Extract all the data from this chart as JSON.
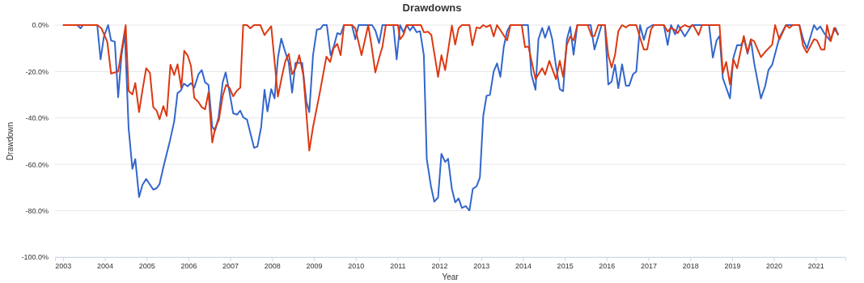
{
  "chart_data": {
    "type": "line",
    "title": "Drawdowns",
    "xlabel": "Year",
    "ylabel": "Drawdown",
    "xlim": [
      2002.81,
      2021.71
    ],
    "xticks": [
      2003,
      2004,
      2005,
      2006,
      2007,
      2008,
      2009,
      2010,
      2011,
      2012,
      2013,
      2014,
      2015,
      2016,
      2017,
      2018,
      2019,
      2020,
      2021
    ],
    "ylim": [
      -100,
      0
    ],
    "yticks": [
      {
        "value": -100,
        "label": "-100.0%"
      },
      {
        "value": -80,
        "label": "-80.0%"
      },
      {
        "value": -60,
        "label": "-60.0%"
      },
      {
        "value": -40,
        "label": "-40.0%"
      },
      {
        "value": -20,
        "label": "-20.0%"
      },
      {
        "value": 0,
        "label": "0.0%"
      }
    ],
    "grid": "y",
    "marker": "none",
    "line_style": "solid",
    "series": [
      {
        "color": "#3366cc",
        "x": [
          2003.0,
          2003.34,
          2003.42,
          2003.48,
          2003.82,
          2003.9,
          2003.98,
          2004.08,
          2004.15,
          2004.24,
          2004.32,
          2004.4,
          2004.48,
          2004.57,
          2004.66,
          2004.73,
          2004.82,
          2004.9,
          2004.99,
          2005.16,
          2005.24,
          2005.31,
          2005.4,
          2005.56,
          2005.66,
          2005.74,
          2005.82,
          2005.89,
          2005.98,
          2006.06,
          2006.14,
          2006.24,
          2006.32,
          2006.4,
          2006.48,
          2006.57,
          2006.64,
          2006.72,
          2006.82,
          2006.89,
          2006.98,
          2007.07,
          2007.16,
          2007.24,
          2007.31,
          2007.4,
          2007.57,
          2007.65,
          2007.74,
          2007.82,
          2007.89,
          2007.98,
          2008.06,
          2008.14,
          2008.22,
          2008.3,
          2008.4,
          2008.48,
          2008.56,
          2008.72,
          2008.82,
          2008.89,
          2008.98,
          2009.07,
          2009.16,
          2009.22,
          2009.31,
          2009.4,
          2009.48,
          2009.56,
          2009.64,
          2009.72,
          2009.91,
          2009.99,
          2010.07,
          2010.39,
          2010.47,
          2010.56,
          2010.64,
          2010.9,
          2010.98,
          2011.06,
          2011.14,
          2011.22,
          2011.3,
          2011.37,
          2011.46,
          2011.54,
          2011.63,
          2011.7,
          2011.8,
          2011.88,
          2011.97,
          2012.05,
          2012.14,
          2012.21,
          2012.3,
          2012.38,
          2012.46,
          2012.54,
          2012.63,
          2012.72,
          2012.8,
          2012.89,
          2012.97,
          2013.05,
          2013.13,
          2013.21,
          2013.3,
          2013.38,
          2013.46,
          2013.54,
          2013.62,
          2013.7,
          2014.12,
          2014.2,
          2014.3,
          2014.37,
          2014.46,
          2014.53,
          2014.62,
          2014.7,
          2014.79,
          2014.88,
          2014.96,
          2015.05,
          2015.13,
          2015.21,
          2015.3,
          2015.62,
          2015.71,
          2015.88,
          2015.96,
          2016.04,
          2016.12,
          2016.2,
          2016.28,
          2016.37,
          2016.46,
          2016.54,
          2016.63,
          2016.71,
          2016.8,
          2016.89,
          2016.97,
          2017.1,
          2017.37,
          2017.46,
          2017.54,
          2017.64,
          2017.71,
          2017.87,
          2018.04,
          2018.45,
          2018.54,
          2018.63,
          2018.7,
          2018.78,
          2018.95,
          2019.03,
          2019.12,
          2019.21,
          2019.29,
          2019.37,
          2019.45,
          2019.53,
          2019.69,
          2019.79,
          2019.87,
          2019.96,
          2020.13,
          2020.29,
          2020.61,
          2020.71,
          2020.79,
          2020.96,
          2021.03,
          2021.11,
          2021.21,
          2021.34,
          2021.47,
          2021.54
        ],
        "values": [
          0,
          0,
          -1.4,
          0,
          0,
          -14.8,
          -4.9,
          0,
          -6.6,
          -7.2,
          -31.1,
          -13.0,
          -3.5,
          -44.4,
          -61.9,
          -57.8,
          -74.1,
          -68.9,
          -66.3,
          -70.9,
          -70.3,
          -68.5,
          -61.3,
          -49.7,
          -41.5,
          -29.3,
          -28.2,
          -25.2,
          -26.4,
          -25.0,
          -27.0,
          -21.2,
          -19.4,
          -24.7,
          -25.8,
          -43.9,
          -45.4,
          -39.8,
          -24.7,
          -20.4,
          -28.7,
          -38.0,
          -38.6,
          -36.9,
          -39.8,
          -40.7,
          -52.9,
          -52.4,
          -43.9,
          -27.9,
          -37.2,
          -27.6,
          -31.6,
          -14.2,
          -5.8,
          -10.7,
          -16.3,
          -29.1,
          -16.3,
          -16.3,
          -32.8,
          -37.5,
          -13.0,
          -2.0,
          -1.6,
          0,
          0,
          -13.0,
          -9.0,
          -3.5,
          -4.0,
          0,
          0,
          -6.1,
          0,
          0,
          -2.3,
          -7.8,
          0,
          0,
          -14.8,
          0,
          -3.1,
          0,
          -2.3,
          -0.5,
          -3.1,
          -2.6,
          -13.0,
          -57.8,
          -69.5,
          -76.1,
          -74.3,
          -55.5,
          -59.0,
          -57.6,
          -70.6,
          -76.4,
          -74.7,
          -78.8,
          -78.0,
          -79.9,
          -70.6,
          -69.5,
          -65.7,
          -39.2,
          -30.5,
          -30.1,
          -20.0,
          -16.5,
          -22.3,
          -9.5,
          -2.6,
          0,
          0,
          -21.2,
          -27.9,
          -6.1,
          -1.2,
          -5.5,
          -0.5,
          -6.1,
          -17.7,
          -27.6,
          -28.5,
          -6.1,
          -0.8,
          -12.8,
          0,
          0,
          -10.5,
          0,
          0,
          -25.6,
          -24.4,
          -17.1,
          -27.2,
          -16.9,
          -26.1,
          -26.1,
          -21.2,
          -20.0,
          0,
          -6.4,
          -1.4,
          0,
          0,
          -8.6,
          0,
          -4.0,
          0,
          -4.9,
          0,
          0,
          -14.0,
          -6.6,
          -4.7,
          -22.9,
          -31.6,
          -14.2,
          -8.6,
          -8.7,
          -6.1,
          -12.4,
          -6.4,
          -16.5,
          -31.6,
          -26.4,
          -19.4,
          -17.1,
          -5.5,
          0,
          0,
          -6.6,
          -10.1,
          0,
          -2.0,
          -0.6,
          -3.7,
          -6.6,
          -1.2,
          -4.3
        ]
      },
      {
        "color": "#dc3912",
        "x": [
          2003.0,
          2003.82,
          2003.92,
          2004.06,
          2004.15,
          2004.32,
          2004.5,
          2004.57,
          2004.66,
          2004.73,
          2004.82,
          2004.9,
          2004.99,
          2005.08,
          2005.16,
          2005.24,
          2005.31,
          2005.4,
          2005.48,
          2005.57,
          2005.66,
          2005.74,
          2005.83,
          2005.9,
          2005.98,
          2006.06,
          2006.14,
          2006.24,
          2006.32,
          2006.4,
          2006.48,
          2006.57,
          2006.64,
          2006.73,
          2006.82,
          2006.9,
          2006.98,
          2007.07,
          2007.16,
          2007.24,
          2007.31,
          2007.4,
          2007.48,
          2007.57,
          2007.72,
          2007.82,
          2007.98,
          2008.14,
          2008.24,
          2008.32,
          2008.4,
          2008.48,
          2008.56,
          2008.65,
          2008.75,
          2008.89,
          2008.98,
          2009.14,
          2009.3,
          2009.39,
          2009.47,
          2009.56,
          2009.64,
          2009.72,
          2009.91,
          2009.99,
          2010.14,
          2010.3,
          2010.38,
          2010.47,
          2010.56,
          2010.64,
          2010.72,
          2011.01,
          2011.06,
          2011.14,
          2011.22,
          2011.56,
          2011.63,
          2011.73,
          2011.81,
          2011.97,
          2012.05,
          2012.14,
          2012.3,
          2012.38,
          2012.46,
          2012.54,
          2012.72,
          2012.79,
          2012.89,
          2012.97,
          2013.05,
          2013.13,
          2013.22,
          2013.3,
          2013.38,
          2013.62,
          2013.7,
          2013.97,
          2014.05,
          2014.13,
          2014.3,
          2014.46,
          2014.53,
          2014.63,
          2014.79,
          2014.88,
          2014.96,
          2015.05,
          2015.13,
          2015.21,
          2015.3,
          2015.55,
          2015.64,
          2015.71,
          2015.8,
          2015.96,
          2016.04,
          2016.12,
          2016.2,
          2016.28,
          2016.37,
          2016.46,
          2016.54,
          2016.71,
          2016.8,
          2016.89,
          2016.97,
          2017.06,
          2017.13,
          2017.37,
          2017.46,
          2017.54,
          2017.64,
          2017.7,
          2017.78,
          2017.87,
          2017.97,
          2018.07,
          2018.2,
          2018.28,
          2018.7,
          2018.78,
          2018.86,
          2018.95,
          2019.03,
          2019.12,
          2019.28,
          2019.37,
          2019.45,
          2019.53,
          2019.69,
          2019.79,
          2019.96,
          2020.03,
          2020.13,
          2020.29,
          2020.37,
          2020.45,
          2020.61,
          2020.7,
          2020.79,
          2020.96,
          2021.03,
          2021.13,
          2021.21,
          2021.27,
          2021.36,
          2021.44,
          2021.54
        ],
        "values": [
          0,
          0,
          -1.4,
          -7.2,
          -20.9,
          -20.0,
          0,
          -28.4,
          -29.9,
          -25.0,
          -37.5,
          -28.2,
          -18.6,
          -20.6,
          -35.4,
          -36.9,
          -40.6,
          -34.9,
          -39.2,
          -17.1,
          -21.5,
          -16.9,
          -27.0,
          -11.1,
          -13.0,
          -17.5,
          -31.3,
          -33.2,
          -35.4,
          -36.3,
          -29.0,
          -50.6,
          -44.4,
          -40.7,
          -30.5,
          -25.8,
          -27.0,
          -30.7,
          -28.2,
          -27.0,
          0,
          0,
          -1.4,
          0,
          0,
          -4.3,
          -0.5,
          -30.8,
          -21.8,
          -15.4,
          -12.4,
          -21.2,
          -18.6,
          -13.0,
          -21.8,
          -54.1,
          -43.9,
          -29.3,
          -13.6,
          -15.9,
          -10.1,
          -8.1,
          -13.0,
          0,
          0,
          -1.4,
          -13.0,
          0,
          -9.0,
          -20.4,
          -14.2,
          -9.3,
          0,
          0,
          -6.1,
          -4.3,
          0,
          0,
          -3.1,
          -2.9,
          -4.3,
          -22.3,
          -13.0,
          -19.4,
          -0.2,
          -8.4,
          -1.4,
          0,
          0,
          -8.7,
          -1.0,
          -1.4,
          0,
          -0.8,
          0,
          -4.9,
          0,
          -6.6,
          0,
          0,
          -9.5,
          -9.2,
          -23.3,
          -18.6,
          -21.4,
          -15.4,
          -23.3,
          -15.4,
          -22.3,
          -8.4,
          -4.9,
          -6.6,
          0,
          0,
          -4.7,
          -4.7,
          0,
          0,
          -13.0,
          -18.3,
          -13.0,
          -2.6,
          0,
          -1.0,
          0,
          0,
          -5.5,
          -10.5,
          -10.5,
          -2.0,
          0,
          0,
          -2.8,
          -1.2,
          -2.2,
          -3.5,
          -1.0,
          0,
          -0.8,
          0,
          -4.3,
          0,
          0,
          -20.6,
          -15.9,
          -25.6,
          -14.8,
          -18.6,
          -4.7,
          -11.9,
          -6.1,
          -7.0,
          -13.8,
          -11.6,
          -8.4,
          0,
          -6.3,
          0,
          -1.2,
          0,
          0,
          -9.0,
          -11.9,
          -6.1,
          -6.6,
          -10.5,
          -10.5,
          0,
          -7.0,
          -1.2,
          -4.3
        ]
      }
    ]
  }
}
